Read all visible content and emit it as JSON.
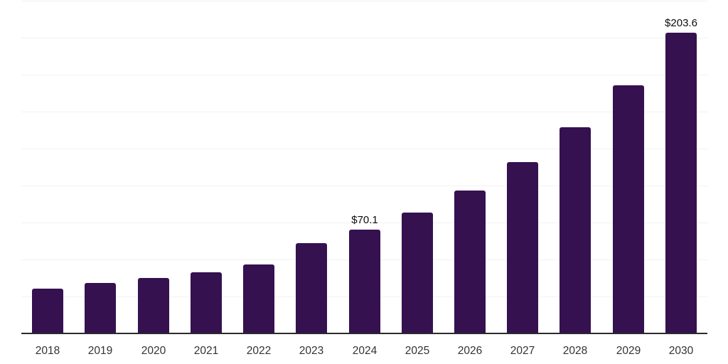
{
  "chart": {
    "background_color": "#ffffff",
    "bar_color": "#351150",
    "grid_color": "#f2f2f2",
    "axis_color": "#2b2b2b",
    "tick_label_color": "#333333",
    "value_label_color": "#0d0d0d"
  },
  "chart_data": {
    "type": "bar",
    "title": "",
    "xlabel": "",
    "ylabel": "",
    "categories": [
      "2018",
      "2019",
      "2020",
      "2021",
      "2022",
      "2023",
      "2024",
      "2025",
      "2026",
      "2027",
      "2028",
      "2029",
      "2030"
    ],
    "values": [
      30.1,
      34.0,
      37.4,
      41.3,
      46.4,
      61.1,
      70.1,
      81.9,
      96.7,
      115.9,
      139.3,
      168.0,
      203.6
    ],
    "data_labels": [
      "",
      "",
      "",
      "",
      "",
      "",
      "$70.1",
      "",
      "",
      "",
      "",
      "",
      "$203.6"
    ],
    "currency_prefix": "$",
    "ylim": [
      0,
      225
    ],
    "grid_step": 25,
    "grid": "horizontal-only",
    "legend": "none",
    "y_axis_labels": "none"
  }
}
